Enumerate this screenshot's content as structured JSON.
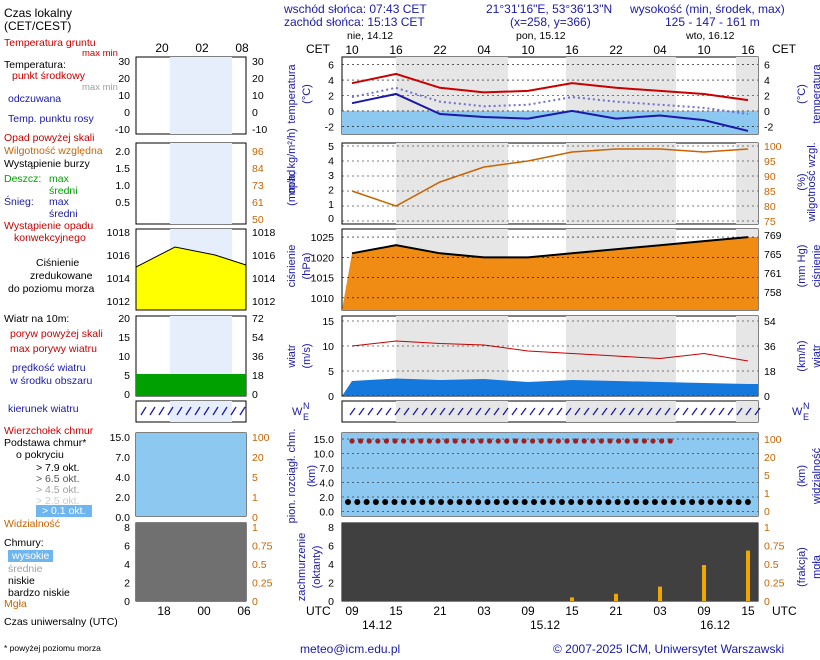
{
  "header": {
    "local_time": "Czas lokalny",
    "local_time_zone": "(CET/CEST)",
    "sunrise": "wschód słońca: 07:43 CET",
    "sunset": "zachód słońca: 15:13 CET",
    "coords": "21°31'16\"E, 53°36'13\"N",
    "grid": "(x=258, y=366)",
    "elevation_title": "wysokość (min, środek, max)",
    "elevation_values": "125 - 147 - 161 m"
  },
  "legend": {
    "soil_temp": "Temperatura gruntu",
    "max_min": "max min",
    "temperature": "Temperatura:",
    "mid_point": "punkt środkowy",
    "max_min2": "max min",
    "perceived": "odczuwana",
    "dew_point": "Temp. punktu rosy",
    "precip_above": "Opad powyżej skali",
    "humidity": "Wilgotność względna",
    "storm": "Wystąpienie burzy",
    "rain": "Deszcz:",
    "rain_max": "max",
    "rain_mid": "średni",
    "snow": "Śnieg:",
    "snow_max": "max",
    "snow_mid": "średni",
    "conv": "Wystąpienie opadu",
    "conv2": "konwekcyjnego",
    "pressure1": "Ciśnienie",
    "pressure2": "zredukowane",
    "pressure3": "do poziomu morza",
    "wind": "Wiatr na 10m:",
    "gust_above": "poryw powyżej skali",
    "gust_max": "max porywy wiatru",
    "wind_speed1": "prędkość wiatru",
    "wind_speed2": "w środku obszaru",
    "wind_dir": "kierunek wiatru",
    "cloud_top": "Wierzchołek chmur",
    "cloud_base1": "Podstawa chmur*",
    "cloud_base2": "o pokryciu",
    "okt79": "> 7.9 okt.",
    "okt65": "> 6.5 okt.",
    "okt45": "> 4.5 okt.",
    "okt25": "> 2.5 okt.",
    "okt01": "> 0.1 okt.",
    "visibility": "Widzialność",
    "clouds": "Chmury:",
    "cl_high": "wysokie",
    "cl_mid": "średnie",
    "cl_low": "niskie",
    "cl_vlow": "bardzo niskie",
    "fog": "Mgła",
    "utc": "Czas uniwersalny (UTC)",
    "footnote": "* powyżej poziomu morza"
  },
  "units": {
    "cet": "CET",
    "utc": "UTC",
    "temp_l": "temperatura",
    "temp_u": "(°C)",
    "precip_l": "opad",
    "precip_u": "(mm/h, kg/m²/h)",
    "hum_l": "wilgotność wzgl.",
    "hum_u": "(%)",
    "press_l": "ciśnienie",
    "press_u": "(hPa)",
    "press_r": "(mm Hg)",
    "wind_l": "wiatr",
    "wind_u": "(m/s)",
    "wind_r": "(km/h)",
    "cloud_l1": "pion. rozciągł. chm.",
    "cloud_l2": "(km)",
    "vis_r1": "(km)",
    "vis_r2": "widzialność",
    "cov_l1": "zachmurzenie",
    "cov_l2": "(oktanty)",
    "fog_r1": "(frakcja)",
    "fog_r2": "mgła"
  },
  "days": {
    "d1": "nie, 14.12",
    "d2": "pon, 15.12",
    "d3": "wto, 16.12"
  },
  "utc_days": {
    "d1": "14.12",
    "d2": "15.12",
    "d3": "16.12"
  },
  "footer": {
    "email": "meteo@icm.edu.pl",
    "copyright": "© 2007-2025 ICM, Uniwersytet Warszawski"
  },
  "ticks": {
    "cet_top": [
      "10",
      "16",
      "22",
      "04",
      "10",
      "16",
      "22",
      "04",
      "10",
      "16"
    ],
    "utc_bottom": [
      "09",
      "15",
      "21",
      "03",
      "09",
      "15",
      "21",
      "03",
      "09",
      "15"
    ],
    "leg_top": [
      "20",
      "02",
      "08"
    ],
    "leg_bottom": [
      "18",
      "00",
      "06"
    ],
    "temp": [
      "6",
      "4",
      "2",
      "0",
      "-2"
    ],
    "precip": [
      "5",
      "4",
      "3",
      "2",
      "1",
      "0"
    ],
    "hum": [
      "100",
      "95",
      "90",
      "85",
      "80",
      "75"
    ],
    "press": [
      "1025",
      "1020",
      "1015",
      "1010"
    ],
    "press_mm": [
      "769",
      "765",
      "761",
      "758"
    ],
    "wind": [
      "15",
      "10",
      "5",
      "0"
    ],
    "wind_kmh": [
      "54",
      "36",
      "18",
      "0"
    ],
    "cloud_km": [
      "15.0",
      "10.0",
      "7.0",
      "4.0",
      "2.0",
      "0.0"
    ],
    "vis": [
      "100",
      "20",
      "5",
      "1",
      "0"
    ],
    "okt": [
      "8",
      "6",
      "4",
      "2",
      "0"
    ],
    "fog": [
      "1",
      "0.75",
      "0.5",
      "0.25",
      "0"
    ],
    "leg_temp_l": [
      "30",
      "20",
      "10",
      "0",
      "-10"
    ],
    "leg_temp_r": [
      "30",
      "20",
      "10",
      "0",
      "-10"
    ],
    "leg_prec": [
      "2.0",
      "1.5",
      "1.0",
      "0.5"
    ],
    "leg_hum": [
      "96",
      "84",
      "73",
      "61",
      "50"
    ],
    "leg_press": [
      "1018",
      "1016",
      "1014",
      "1012"
    ],
    "leg_press_r": [
      "1018",
      "1016",
      "1014",
      "1012"
    ],
    "leg_wind": [
      "20",
      "15",
      "10",
      "5",
      "0"
    ],
    "leg_wind_r": [
      "72",
      "54",
      "36",
      "18",
      "0"
    ],
    "leg_cloud": [
      "15.0",
      "7.0",
      "4.0",
      "2.0",
      "0.0"
    ],
    "leg_vis": [
      "100",
      "20",
      "5",
      "1",
      "0"
    ],
    "leg_okt": [
      "8",
      "6",
      "4",
      "2",
      "0"
    ],
    "leg_fog": [
      "1",
      "0.75",
      "0.5",
      "0.25",
      "0"
    ]
  },
  "colors": {
    "red": "#c80000",
    "blue": "#1a1aa6",
    "orange": "#c86400",
    "green": "#00a000"
  },
  "chart_data": {
    "type": "line",
    "x_utc": [
      "09",
      "15",
      "21",
      "03",
      "09",
      "15",
      "21",
      "03",
      "09",
      "15"
    ],
    "temperature": [
      3.6,
      4.8,
      3.0,
      2.4,
      2.6,
      3.6,
      3.0,
      2.6,
      2.2,
      1.4
    ],
    "perceived": [
      1.0,
      2.2,
      -0.4,
      -0.8,
      -1.0,
      0.0,
      -1.0,
      -0.6,
      -1.2,
      -2.6
    ],
    "humidity": [
      85,
      80,
      88,
      93,
      95,
      98,
      99,
      99,
      98,
      99
    ],
    "pressure": [
      1021,
      1023,
      1021,
      1020,
      1020,
      1021,
      1022,
      1023,
      1024,
      1025
    ],
    "wind_speed": [
      3,
      3.5,
      3.2,
      3.4,
      2.8,
      3.2,
      3,
      2.8,
      2.6,
      2.4
    ],
    "wind_gust": [
      10,
      11,
      10.5,
      10.2,
      9,
      8.5,
      8,
      7.5,
      8.5,
      7
    ],
    "fog": [
      0,
      0,
      0,
      0,
      0,
      0.05,
      0.1,
      0.2,
      0.5,
      0.7
    ]
  }
}
